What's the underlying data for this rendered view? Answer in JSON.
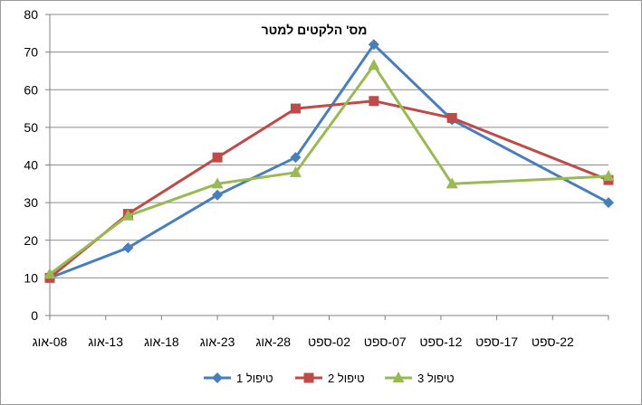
{
  "chart_data": {
    "type": "line",
    "title": "מס' הלקטים למטר",
    "xlabel": "",
    "ylabel": "",
    "ylim": [
      0,
      80
    ],
    "yticks": [
      0,
      10,
      20,
      30,
      40,
      50,
      60,
      70,
      80
    ],
    "grid": true,
    "legend_position": "bottom",
    "xtick_labels": [
      "08-אוג",
      "13-אוג",
      "18-אוג",
      "23-אוג",
      "28-אוג",
      "02-ספט",
      "07-ספט",
      "12-ספט",
      "17-ספט",
      "22-ספט"
    ],
    "x_range": [
      "08-אוג",
      "27-ספט"
    ],
    "series": [
      {
        "name": "טיפול 1",
        "color": "#4a7ebb",
        "marker": "diamond",
        "points": [
          {
            "x": "08-אוג",
            "y": 10
          },
          {
            "x": "15-אוג",
            "y": 18
          },
          {
            "x": "23-אוג",
            "y": 32
          },
          {
            "x": "30-אוג",
            "y": 42
          },
          {
            "x": "06-ספט",
            "y": 72
          },
          {
            "x": "13-ספט",
            "y": 52
          },
          {
            "x": "27-ספט",
            "y": 30
          }
        ]
      },
      {
        "name": "טיפול 2",
        "color": "#be4b48",
        "marker": "square",
        "points": [
          {
            "x": "08-אוג",
            "y": 10
          },
          {
            "x": "15-אוג",
            "y": 27
          },
          {
            "x": "23-אוג",
            "y": 42
          },
          {
            "x": "30-אוג",
            "y": 55
          },
          {
            "x": "06-ספט",
            "y": 57
          },
          {
            "x": "13-ספט",
            "y": 52.5
          },
          {
            "x": "27-ספט",
            "y": 36
          }
        ]
      },
      {
        "name": "טיפול 3",
        "color": "#98b954",
        "marker": "triangle",
        "points": [
          {
            "x": "08-אוג",
            "y": 11
          },
          {
            "x": "15-אוג",
            "y": 26.5
          },
          {
            "x": "23-אוג",
            "y": 35
          },
          {
            "x": "30-אוג",
            "y": 38
          },
          {
            "x": "06-ספט",
            "y": 66.5
          },
          {
            "x": "13-ספט",
            "y": 35
          },
          {
            "x": "27-ספט",
            "y": 37
          }
        ]
      }
    ]
  }
}
